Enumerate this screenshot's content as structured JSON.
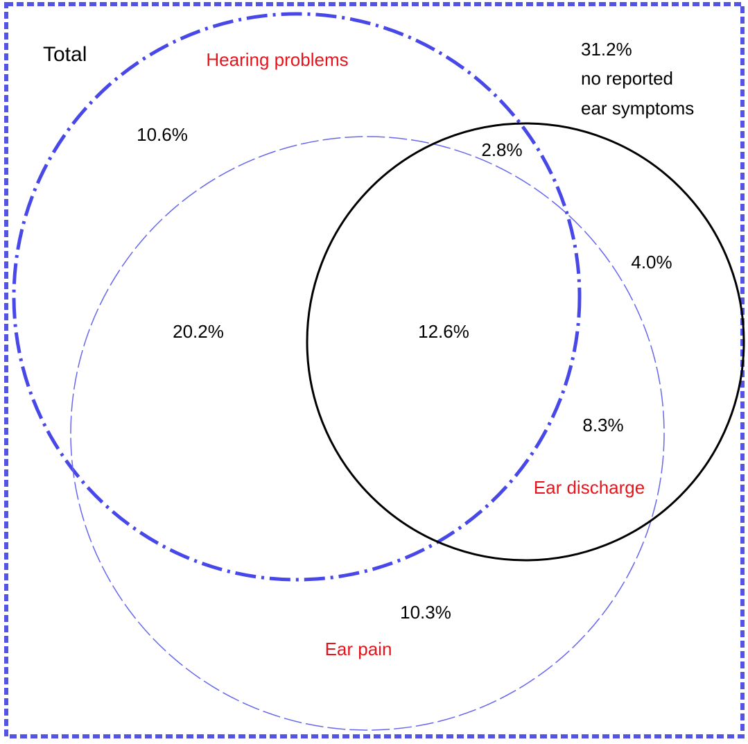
{
  "title": "Total",
  "sets": [
    {
      "label": "Hearing problems"
    },
    {
      "label": "Ear pain"
    },
    {
      "label": "Ear discharge"
    }
  ],
  "regions": [
    {
      "label": "10.6%"
    },
    {
      "label": "2.8%"
    },
    {
      "label": "4.0%"
    },
    {
      "label": "20.2%"
    },
    {
      "label": "12.6%"
    },
    {
      "label": "8.3%"
    },
    {
      "label": "10.3%"
    }
  ],
  "outside": {
    "value": "31.2%",
    "lines": [
      "no reported",
      "ear symptoms"
    ]
  }
}
